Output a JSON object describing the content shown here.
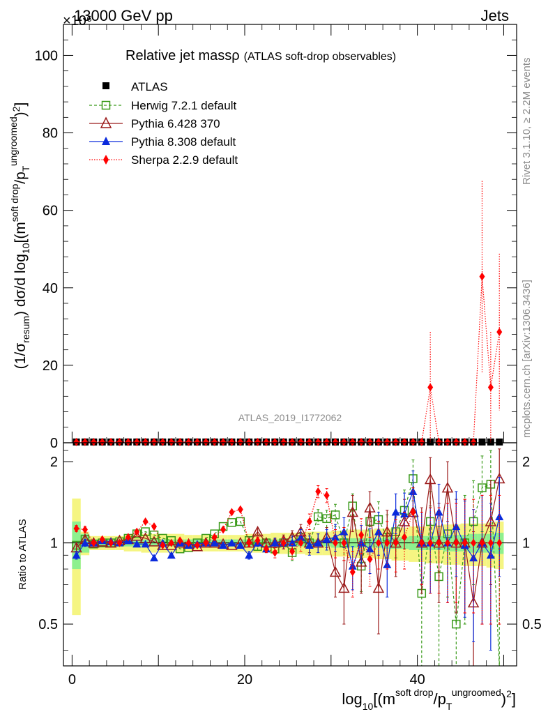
{
  "header": {
    "energy": "13000 GeV pp",
    "process": "Jets",
    "multiplier": "×10⁶"
  },
  "main_title": "Relative jet mass",
  "main_title_symbol": "ρ",
  "main_subtitle": "(ATLAS soft-drop observables)",
  "analysis_id": "ATLAS_2019_I1772062",
  "side_text": {
    "rivet": "Rivet 3.1.10, ≥ 2.2M events",
    "mcplots": "mcplots.cern.ch [arXiv:1306.3436]"
  },
  "ratio_ylabel": "Ratio to ATLAS",
  "colors": {
    "atlas": "#000000",
    "herwig": "#3a9a1a",
    "pythia6": "#9b1b1b",
    "pythia8": "#0a2adc",
    "sherpa": "#ff0000",
    "band_green": "#8ef08e",
    "band_yellow": "#f5f582"
  },
  "chart_data": {
    "type": "scatter",
    "x_axis": {
      "range": [
        -1,
        51.5
      ],
      "ticks": [
        0,
        20,
        40
      ],
      "label": "log10[(m^soft drop/pT^ungroomed)^2]"
    },
    "main_y_axis": {
      "range": [
        0,
        108
      ],
      "ticks": [
        0,
        20,
        40,
        60,
        80,
        100
      ],
      "label": "(1/σresum) dσ/d log10[(m^soft drop/pT^ungroomed)^2]",
      "scale_factor": "×10⁶"
    },
    "ratio_y_axis": {
      "range": [
        0.35,
        2.35
      ],
      "ticks": [
        0.5,
        1,
        2
      ],
      "label": "Ratio to ATLAS"
    },
    "legend": [
      {
        "name": "ATLAS",
        "marker": "filled-square",
        "line": "none"
      },
      {
        "name": "Herwig 7.2.1 default",
        "marker": "open-square",
        "line": "dashed"
      },
      {
        "name": "Pythia 6.428 370",
        "marker": "open-triangle",
        "line": "solid"
      },
      {
        "name": "Pythia 8.308 default",
        "marker": "filled-triangle",
        "line": "solid"
      },
      {
        "name": "Sherpa 2.2.9 default",
        "marker": "filled-diamond",
        "line": "dotted"
      }
    ],
    "x": [
      0.5,
      1.5,
      2.5,
      3.5,
      4.5,
      5.5,
      6.5,
      7.5,
      8.5,
      9.5,
      10.5,
      11.5,
      12.5,
      13.5,
      14.5,
      15.5,
      16.5,
      17.5,
      18.5,
      19.5,
      20.5,
      21.5,
      22.5,
      23.5,
      24.5,
      25.5,
      26.5,
      27.5,
      28.5,
      29.5,
      30.5,
      31.5,
      32.5,
      33.5,
      34.5,
      35.5,
      36.5,
      37.5,
      38.5,
      39.5,
      40.5,
      41.5,
      42.5,
      43.5,
      44.5,
      45.5,
      46.5,
      47.5,
      48.5,
      49.5
    ],
    "main_series": [
      {
        "name": "ATLAS",
        "values": [
          0.2,
          0.2,
          0.2,
          0.2,
          0.2,
          0.2,
          0.2,
          0.2,
          0.2,
          0.2,
          0.2,
          0.2,
          0.2,
          0.2,
          0.2,
          0.2,
          0.2,
          0.2,
          0.2,
          0.2,
          0.2,
          0.2,
          0.2,
          0.2,
          0.2,
          0.2,
          0.2,
          0.2,
          0.2,
          0.2,
          0.2,
          0.2,
          0.2,
          0.2,
          0.2,
          0.2,
          0.2,
          0.2,
          0.2,
          0.2,
          0.2,
          0.2,
          0.2,
          0.2,
          0.2,
          0.2,
          0.2,
          0.2,
          0.2,
          0.2
        ]
      },
      {
        "name": "Sherpa 2.2.9 default",
        "values": [
          0.2,
          0.2,
          0.2,
          0.2,
          0.2,
          0.2,
          0.2,
          0.2,
          0.2,
          0.2,
          0.2,
          0.2,
          0.2,
          0.2,
          0.2,
          0.2,
          0.2,
          0.2,
          0.2,
          0.2,
          0.2,
          0.2,
          0.2,
          0.2,
          0.2,
          0.2,
          0.2,
          0.2,
          0.2,
          0.2,
          0.2,
          0.2,
          0.2,
          0.2,
          0.2,
          0.2,
          0.2,
          0.2,
          0.2,
          0.2,
          0.2,
          14.3,
          0.2,
          0.2,
          0.2,
          0.2,
          0.2,
          42.9,
          14.3,
          28.6
        ],
        "errors": [
          0,
          0,
          0,
          0,
          0,
          0,
          0,
          0,
          0,
          0,
          0,
          0,
          0,
          0,
          0,
          0,
          0,
          0,
          0,
          0,
          0,
          0,
          0,
          0,
          0,
          0,
          0,
          0,
          0,
          0,
          0,
          0,
          0,
          0,
          0,
          0,
          0,
          0,
          0,
          0,
          0,
          14.3,
          0,
          0,
          0,
          0,
          0,
          24.7,
          14.3,
          20.2
        ]
      }
    ],
    "ratio_series": [
      {
        "name": "ATLAS",
        "values": [
          1,
          1,
          1,
          1,
          1,
          1,
          1,
          1,
          1,
          1,
          1,
          1,
          1,
          1,
          1,
          1,
          1,
          1,
          1,
          1,
          1,
          1,
          1,
          1,
          1,
          1,
          1,
          1,
          1,
          1,
          1,
          1,
          1,
          1,
          1,
          1,
          1,
          1,
          1,
          1,
          1,
          1,
          1,
          1,
          1,
          1,
          1,
          1,
          1,
          1
        ]
      },
      {
        "name": "Herwig 7.2.1 default",
        "values": [
          0.98,
          1.03,
          0.99,
          1.0,
          1.0,
          1.01,
          1.04,
          1.08,
          1.1,
          1.07,
          1.04,
          1.02,
          0.95,
          0.96,
          1.0,
          1.04,
          1.08,
          1.15,
          1.19,
          1.2,
          1.02,
          0.97,
          1.0,
          0.95,
          1.0,
          0.92,
          1.05,
          1.0,
          1.25,
          1.23,
          1.27,
          1.0,
          1.37,
          0.82,
          1.2,
          1.22,
          1.05,
          1.1,
          1.32,
          1.73,
          0.65,
          1.2,
          0.75,
          1.08,
          0.5,
          1.0,
          1.2,
          1.6,
          1.65,
          0.35
        ],
        "errors": [
          0.03,
          0.03,
          0.02,
          0.02,
          0.02,
          0.02,
          0.02,
          0.02,
          0.02,
          0.02,
          0.02,
          0.02,
          0.02,
          0.02,
          0.02,
          0.02,
          0.02,
          0.02,
          0.02,
          0.02,
          0.03,
          0.03,
          0.03,
          0.04,
          0.05,
          0.06,
          0.07,
          0.08,
          0.08,
          0.09,
          0.12,
          0.14,
          0.15,
          0.16,
          0.18,
          0.2,
          0.22,
          0.22,
          0.25,
          0.3,
          0.35,
          0.35,
          0.4,
          0.45,
          0.45,
          0.5,
          0.5,
          0.5,
          0.55,
          0.6
        ]
      },
      {
        "name": "Pythia 6.428 370",
        "values": [
          0.96,
          1.03,
          1.0,
          1.01,
          1.0,
          1.02,
          1.03,
          1.06,
          1.04,
          1.01,
          0.98,
          0.98,
          1.0,
          0.99,
          0.97,
          1.0,
          1.0,
          0.99,
          0.98,
          1.0,
          1.0,
          1.1,
          1.0,
          1.0,
          1.02,
          1.05,
          1.1,
          1.0,
          1.0,
          1.05,
          0.78,
          0.68,
          1.3,
          0.85,
          1.35,
          0.68,
          1.1,
          1.0,
          1.2,
          1.3,
          1.0,
          1.72,
          1.0,
          1.6,
          1.0,
          1.0,
          0.6,
          1.0,
          1.2,
          1.73
        ],
        "errors": [
          0.03,
          0.03,
          0.02,
          0.02,
          0.02,
          0.02,
          0.02,
          0.02,
          0.02,
          0.02,
          0.02,
          0.02,
          0.02,
          0.02,
          0.02,
          0.02,
          0.02,
          0.02,
          0.02,
          0.02,
          0.03,
          0.03,
          0.03,
          0.04,
          0.05,
          0.06,
          0.07,
          0.08,
          0.08,
          0.09,
          0.15,
          0.18,
          0.2,
          0.2,
          0.2,
          0.22,
          0.22,
          0.25,
          0.25,
          0.3,
          0.35,
          0.35,
          0.4,
          0.4,
          0.45,
          0.45,
          0.5,
          0.5,
          0.5,
          0.5
        ]
      },
      {
        "name": "Pythia 8.308 default",
        "values": [
          0.9,
          1.0,
          1.0,
          1.02,
          1.01,
          1.0,
          1.02,
          0.99,
          0.99,
          0.88,
          1.0,
          0.9,
          1.0,
          0.98,
          0.99,
          1.0,
          1.0,
          0.98,
          1.0,
          0.98,
          0.9,
          1.0,
          0.95,
          1.0,
          1.0,
          1.0,
          1.05,
          0.98,
          1.0,
          1.03,
          1.05,
          1.1,
          0.82,
          1.0,
          0.95,
          1.1,
          0.83,
          1.3,
          1.28,
          1.55,
          1.0,
          1.0,
          1.3,
          1.0,
          1.15,
          0.98,
          0.88,
          1.0,
          0.9,
          1.25
        ],
        "errors": [
          0.03,
          0.03,
          0.02,
          0.02,
          0.02,
          0.02,
          0.02,
          0.02,
          0.02,
          0.02,
          0.02,
          0.02,
          0.02,
          0.02,
          0.02,
          0.02,
          0.02,
          0.02,
          0.02,
          0.02,
          0.03,
          0.03,
          0.03,
          0.04,
          0.05,
          0.06,
          0.07,
          0.08,
          0.08,
          0.09,
          0.12,
          0.14,
          0.15,
          0.16,
          0.18,
          0.2,
          0.2,
          0.22,
          0.25,
          0.3,
          0.3,
          0.35,
          0.35,
          0.4,
          0.4,
          0.45,
          0.45,
          0.5,
          0.5,
          0.5
        ]
      },
      {
        "name": "Sherpa 2.2.9 default",
        "values": [
          1.13,
          1.12,
          1.0,
          1.03,
          1.0,
          1.0,
          1.05,
          1.1,
          1.2,
          1.15,
          0.98,
          1.0,
          1.02,
          1.0,
          0.98,
          1.0,
          1.05,
          1.12,
          1.3,
          1.33,
          1.0,
          1.02,
          0.95,
          0.92,
          1.0,
          0.93,
          1.0,
          1.2,
          1.55,
          1.5,
          1.0,
          1.0,
          0.78,
          1.07,
          0.87,
          1.0,
          1.0,
          1.0,
          1.05,
          1.3,
          1.0,
          1.0,
          1.0,
          1.0,
          1.0,
          1.0,
          1.0,
          1.0,
          1.0,
          1.0
        ],
        "errors": [
          0.03,
          0.03,
          0.02,
          0.02,
          0.02,
          0.02,
          0.02,
          0.02,
          0.02,
          0.02,
          0.02,
          0.02,
          0.02,
          0.02,
          0.02,
          0.02,
          0.02,
          0.02,
          0.02,
          0.02,
          0.03,
          0.03,
          0.03,
          0.04,
          0.05,
          0.06,
          0.07,
          0.08,
          0.08,
          0.09,
          0.12,
          0.14,
          0.15,
          0.16,
          0.18,
          0.2,
          0.2,
          0.22,
          0.25,
          0.3,
          0.3,
          0.35,
          0.35,
          0.4,
          0.4,
          0.45,
          0.45,
          0.5,
          0.5,
          0.5
        ]
      }
    ],
    "ratio_band_green": [
      0.2,
      0.08,
      0.03,
      0.03,
      0.03,
      0.03,
      0.03,
      0.03,
      0.03,
      0.03,
      0.03,
      0.03,
      0.03,
      0.03,
      0.03,
      0.03,
      0.03,
      0.03,
      0.03,
      0.03,
      0.03,
      0.03,
      0.03,
      0.03,
      0.03,
      0.03,
      0.03,
      0.03,
      0.03,
      0.03,
      0.04,
      0.04,
      0.04,
      0.04,
      0.04,
      0.04,
      0.05,
      0.05,
      0.05,
      0.06,
      0.06,
      0.06,
      0.06,
      0.07,
      0.07,
      0.07,
      0.08,
      0.08,
      0.08,
      0.09
    ],
    "ratio_band_yellow": [
      0.46,
      0.1,
      0.06,
      0.06,
      0.06,
      0.06,
      0.07,
      0.07,
      0.08,
      0.08,
      0.08,
      0.08,
      0.08,
      0.07,
      0.07,
      0.07,
      0.07,
      0.07,
      0.07,
      0.07,
      0.08,
      0.08,
      0.08,
      0.09,
      0.09,
      0.09,
      0.09,
      0.1,
      0.1,
      0.1,
      0.11,
      0.11,
      0.12,
      0.12,
      0.12,
      0.13,
      0.13,
      0.14,
      0.14,
      0.15,
      0.15,
      0.16,
      0.16,
      0.17,
      0.17,
      0.18,
      0.18,
      0.18,
      0.19,
      0.2
    ],
    "ylim_main": [
      0,
      108
    ],
    "ylim_ratio": [
      0.35,
      2.35
    ]
  }
}
